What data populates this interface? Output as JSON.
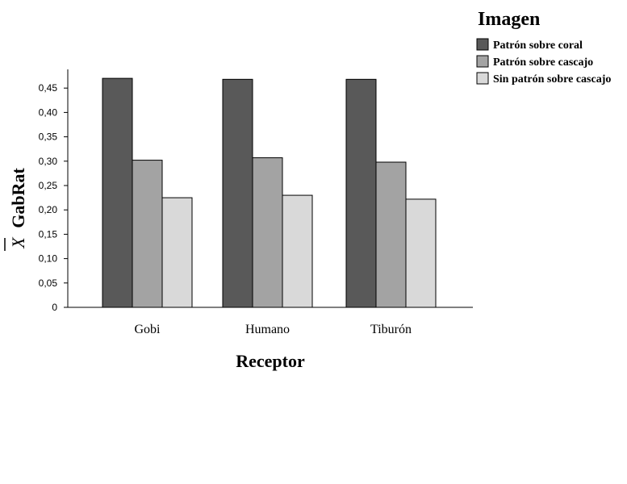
{
  "chart_data": {
    "type": "bar",
    "title": "",
    "xlabel": "Receptor",
    "ylabel": "GabRat",
    "ylabel_symbol": "X",
    "categories": [
      "Gobi",
      "Humano",
      "Tiburón"
    ],
    "series": [
      {
        "name": "Patrón sobre coral",
        "values": [
          0.47,
          0.468,
          0.468
        ],
        "color": "#595959"
      },
      {
        "name": "Patrón sobre cascajo",
        "values": [
          0.302,
          0.307,
          0.298
        ],
        "color": "#a3a3a3"
      },
      {
        "name": "Sin patrón sobre cascajo",
        "values": [
          0.225,
          0.23,
          0.222
        ],
        "color": "#d9d9d9"
      }
    ],
    "ylim": [
      0,
      0.48
    ],
    "yticks": [
      0,
      0.05,
      0.1,
      0.15,
      0.2,
      0.25,
      0.3,
      0.35,
      0.4,
      0.45
    ],
    "ytick_labels": [
      "0",
      "0,05",
      "0,10",
      "0,15",
      "0,20",
      "0,25",
      "0,30",
      "0,35",
      "0,40",
      "0,45"
    ],
    "legend_title": "Imagen",
    "legend_position": "top-right",
    "grid": false
  }
}
